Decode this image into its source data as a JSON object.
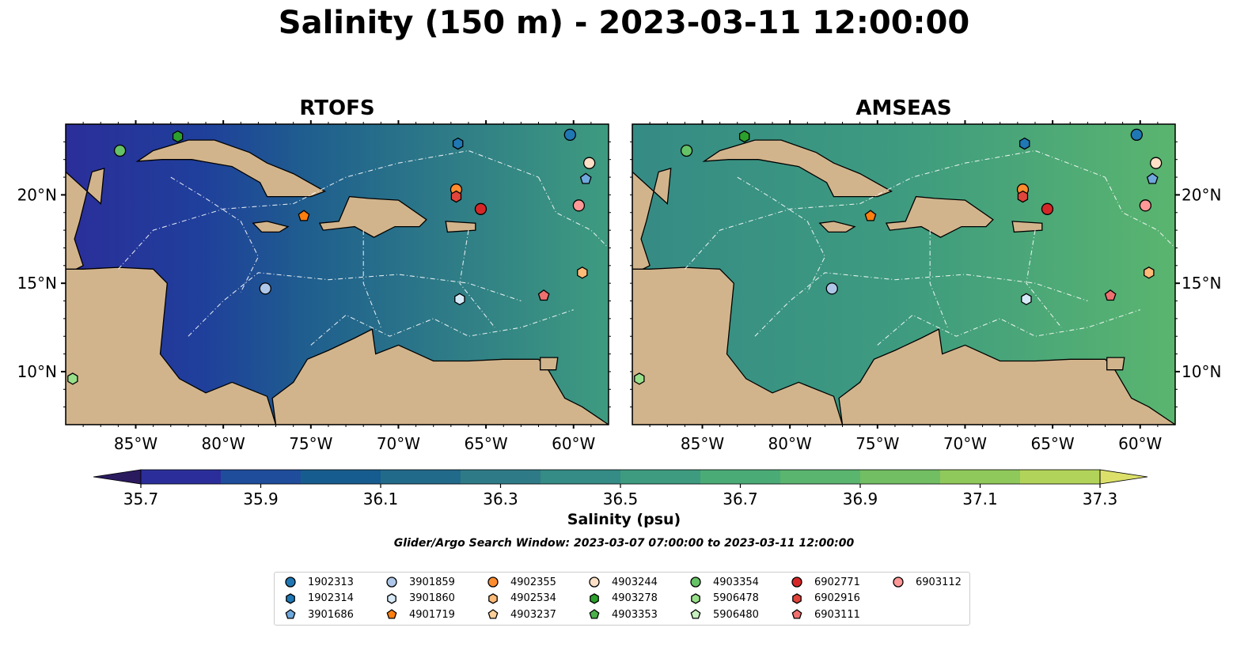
{
  "title": "Salinity (150 m) - 2023-03-11 12:00:00",
  "panels": [
    {
      "title": "RTOFS"
    },
    {
      "title": "AMSEAS"
    }
  ],
  "lon_ticks": [
    "85°W",
    "80°W",
    "75°W",
    "70°W",
    "65°W",
    "60°W"
  ],
  "lat_ticks": [
    "20°N",
    "15°N",
    "10°N"
  ],
  "colors": {
    "land": "#d2b48c",
    "no_data_water": "#9fb8e0",
    "coastline": "#000000",
    "eez_lines": "#ffffff"
  },
  "colorbar": {
    "label": "Salinity (psu)",
    "min": 35.6,
    "max": 37.4,
    "ticks": [
      "35.7",
      "35.9",
      "36.1",
      "36.3",
      "36.5",
      "36.7",
      "36.9",
      "37.1",
      "37.3"
    ],
    "colors": [
      "#2a1a5e",
      "#2b2e9a",
      "#1f4d9b",
      "#175c8e",
      "#226a8a",
      "#2e7b87",
      "#358b85",
      "#3e9b7f",
      "#4aab77",
      "#5ab56f",
      "#72be63",
      "#8fc95b",
      "#b2d35a",
      "#dce06a"
    ],
    "extend": "both"
  },
  "search_window": "Glider/Argo Search Window: 2023-03-07 07:00:00 to 2023-03-11 12:00:00",
  "legend": [
    {
      "id": "1902313",
      "marker": "circle",
      "color": "#1f77b4"
    },
    {
      "id": "1902314",
      "marker": "hexagon",
      "color": "#1f77b4"
    },
    {
      "id": "3901686",
      "marker": "pentagon",
      "color": "#6fa8dc"
    },
    {
      "id": "3901859",
      "marker": "circle",
      "color": "#aec7e8"
    },
    {
      "id": "3901860",
      "marker": "hexagon",
      "color": "#d6eaf8"
    },
    {
      "id": "4901719",
      "marker": "pentagon",
      "color": "#ff7f0e"
    },
    {
      "id": "4902355",
      "marker": "circle",
      "color": "#ff8c2e"
    },
    {
      "id": "4902534",
      "marker": "hexagon",
      "color": "#ffbb78"
    },
    {
      "id": "4903237",
      "marker": "pentagon",
      "color": "#ffcf99"
    },
    {
      "id": "4903244",
      "marker": "circle",
      "color": "#fde0c5"
    },
    {
      "id": "4903278",
      "marker": "hexagon",
      "color": "#2ca02c"
    },
    {
      "id": "4903353",
      "marker": "pentagon",
      "color": "#4cb04c"
    },
    {
      "id": "4903354",
      "marker": "circle",
      "color": "#66c266"
    },
    {
      "id": "5906478",
      "marker": "hexagon",
      "color": "#98df8a"
    },
    {
      "id": "5906480",
      "marker": "pentagon",
      "color": "#c7f0c0"
    },
    {
      "id": "6902771",
      "marker": "circle",
      "color": "#d62728"
    },
    {
      "id": "6902916",
      "marker": "hexagon",
      "color": "#e0443a"
    },
    {
      "id": "6903111",
      "marker": "pentagon",
      "color": "#f07070"
    },
    {
      "id": "6903112",
      "marker": "circle",
      "color": "#ff9896"
    }
  ],
  "floats": [
    {
      "id": "1902313",
      "lon": -60.2,
      "lat": 23.4
    },
    {
      "id": "1902314",
      "lon": -66.6,
      "lat": 22.9
    },
    {
      "id": "3901686",
      "lon": -59.3,
      "lat": 20.9
    },
    {
      "id": "3901859",
      "lon": -77.6,
      "lat": 14.7
    },
    {
      "id": "3901860",
      "lon": -66.5,
      "lat": 14.1
    },
    {
      "id": "4901719",
      "lon": -75.4,
      "lat": 18.8
    },
    {
      "id": "4902355",
      "lon": -66.7,
      "lat": 20.3
    },
    {
      "id": "4902534",
      "lon": -59.5,
      "lat": 15.6
    },
    {
      "id": "4903244",
      "lon": -59.1,
      "lat": 21.8
    },
    {
      "id": "4903278",
      "lon": -82.6,
      "lat": 23.3
    },
    {
      "id": "4903354",
      "lon": -85.9,
      "lat": 22.5
    },
    {
      "id": "5906478",
      "lon": -88.6,
      "lat": 9.6
    },
    {
      "id": "6902771",
      "lon": -65.3,
      "lat": 19.2
    },
    {
      "id": "6902916",
      "lon": -66.7,
      "lat": 19.9
    },
    {
      "id": "6903111",
      "lon": -61.7,
      "lat": 14.3
    },
    {
      "id": "6903112",
      "lon": -59.7,
      "lat": 19.4
    }
  ]
}
